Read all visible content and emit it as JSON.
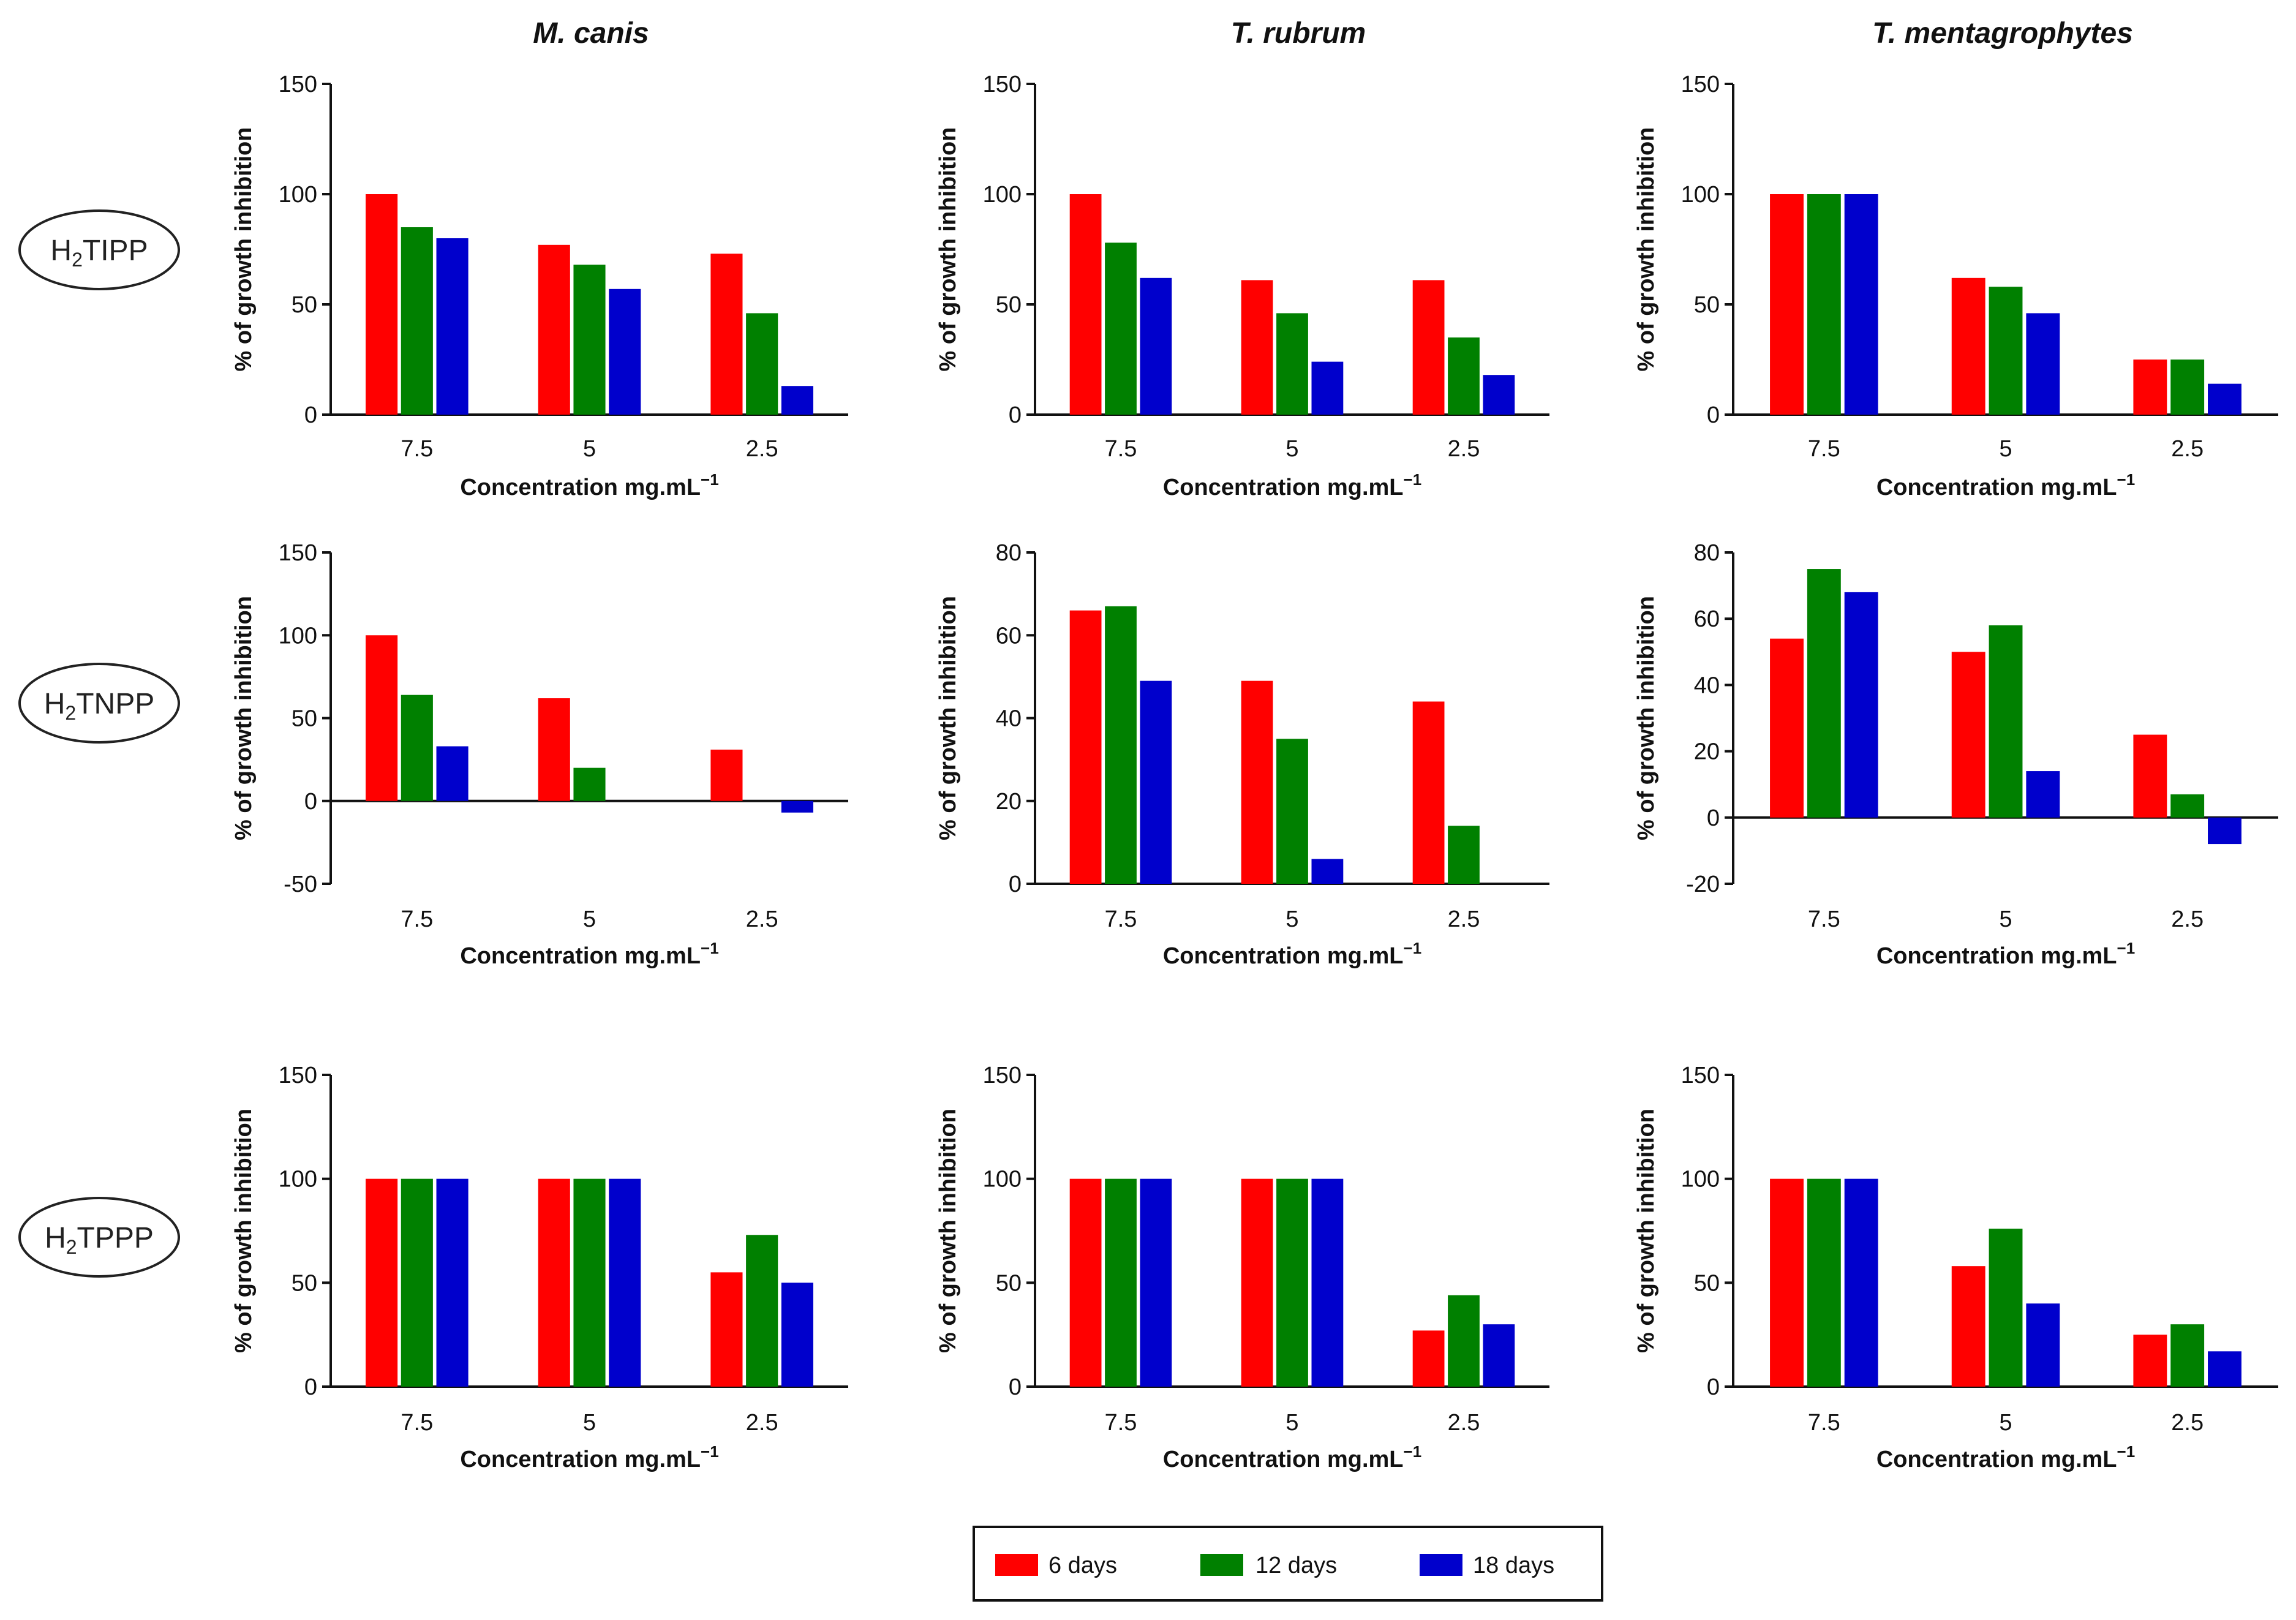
{
  "column_titles": [
    "M. canis",
    "T. rubrum",
    "T. mentagrophytes"
  ],
  "row_labels": [
    {
      "prefix": "H",
      "sub": "2",
      "suffix": "TIPP"
    },
    {
      "prefix": "H",
      "sub": "2",
      "suffix": "TNPP"
    },
    {
      "prefix": "H",
      "sub": "2",
      "suffix": "TPPP"
    }
  ],
  "legend": [
    {
      "label": "6 days",
      "color": "#ff0000"
    },
    {
      "label": "12 days",
      "color": "#008000"
    },
    {
      "label": "18 days",
      "color": "#0000cc"
    }
  ],
  "chart_data": [
    {
      "type": "bar",
      "row": 0,
      "col": 0,
      "title": "M. canis",
      "compound": "H2TIPP",
      "categories": [
        "7.5",
        "5",
        "2.5"
      ],
      "xlabel": "Concentration mg.mL",
      "xlabel_sup": "−1",
      "ylabel": "% of growth inhibition",
      "ylim": [
        0,
        150
      ],
      "yticks": [
        0,
        50,
        100,
        150
      ],
      "series": [
        {
          "name": "6 days",
          "values": [
            100,
            77,
            73
          ]
        },
        {
          "name": "12 days",
          "values": [
            85,
            68,
            46
          ]
        },
        {
          "name": "18 days",
          "values": [
            80,
            57,
            13
          ]
        }
      ]
    },
    {
      "type": "bar",
      "row": 0,
      "col": 1,
      "title": "T. rubrum",
      "compound": "H2TIPP",
      "categories": [
        "7.5",
        "5",
        "2.5"
      ],
      "xlabel": "Concentration mg.mL",
      "xlabel_sup": "−1",
      "ylabel": "% of growth inhibition",
      "ylim": [
        0,
        150
      ],
      "yticks": [
        0,
        50,
        100,
        150
      ],
      "series": [
        {
          "name": "6 days",
          "values": [
            100,
            61,
            61
          ]
        },
        {
          "name": "12 days",
          "values": [
            78,
            46,
            35
          ]
        },
        {
          "name": "18 days",
          "values": [
            62,
            24,
            18
          ]
        }
      ]
    },
    {
      "type": "bar",
      "row": 0,
      "col": 2,
      "title": "T. mentagrophytes",
      "compound": "H2TIPP",
      "categories": [
        "7.5",
        "5",
        "2.5"
      ],
      "xlabel": "Concentration mg.mL",
      "xlabel_sup": "−1",
      "ylabel": "% of growth inhibition",
      "ylim": [
        0,
        150
      ],
      "yticks": [
        0,
        50,
        100,
        150
      ],
      "series": [
        {
          "name": "6 days",
          "values": [
            100,
            62,
            25
          ]
        },
        {
          "name": "12 days",
          "values": [
            100,
            58,
            25
          ]
        },
        {
          "name": "18 days",
          "values": [
            100,
            46,
            14
          ]
        }
      ]
    },
    {
      "type": "bar",
      "row": 1,
      "col": 0,
      "title": "M. canis",
      "compound": "H2TNPP",
      "categories": [
        "7.5",
        "5",
        "2.5"
      ],
      "xlabel": "Concentration mg.mL",
      "xlabel_sup": "−1",
      "ylabel": "% of growth inhibition",
      "ylim": [
        -50,
        150
      ],
      "yticks": [
        -50,
        0,
        50,
        100,
        150
      ],
      "series": [
        {
          "name": "6 days",
          "values": [
            100,
            62,
            31
          ]
        },
        {
          "name": "12 days",
          "values": [
            64,
            20,
            0
          ]
        },
        {
          "name": "18 days",
          "values": [
            33,
            0,
            -7
          ]
        }
      ]
    },
    {
      "type": "bar",
      "row": 1,
      "col": 1,
      "title": "T. rubrum",
      "compound": "H2TNPP",
      "categories": [
        "7.5",
        "5",
        "2.5"
      ],
      "xlabel": "Concentration mg.mL",
      "xlabel_sup": "−1",
      "ylabel": "% of growth inhibition",
      "ylim": [
        0,
        80
      ],
      "yticks": [
        0,
        20,
        40,
        60,
        80
      ],
      "series": [
        {
          "name": "6 days",
          "values": [
            66,
            49,
            44
          ]
        },
        {
          "name": "12 days",
          "values": [
            67,
            35,
            14
          ]
        },
        {
          "name": "18 days",
          "values": [
            49,
            6,
            0
          ]
        }
      ]
    },
    {
      "type": "bar",
      "row": 1,
      "col": 2,
      "title": "T. mentagrophytes",
      "compound": "H2TNPP",
      "categories": [
        "7.5",
        "5",
        "2.5"
      ],
      "xlabel": "Concentration mg.mL",
      "xlabel_sup": "−1",
      "ylabel": "% of growth inhibition",
      "ylim": [
        -20,
        80
      ],
      "yticks": [
        -20,
        0,
        20,
        40,
        60,
        80
      ],
      "series": [
        {
          "name": "6 days",
          "values": [
            54,
            50,
            25
          ]
        },
        {
          "name": "12 days",
          "values": [
            75,
            58,
            7
          ]
        },
        {
          "name": "18 days",
          "values": [
            68,
            14,
            -8
          ]
        }
      ]
    },
    {
      "type": "bar",
      "row": 2,
      "col": 0,
      "title": "M. canis",
      "compound": "H2TPPP",
      "categories": [
        "7.5",
        "5",
        "2.5"
      ],
      "xlabel": "Concentration mg.mL",
      "xlabel_sup": "−1",
      "ylabel": "% of growth inhibition",
      "ylim": [
        0,
        150
      ],
      "yticks": [
        0,
        50,
        100,
        150
      ],
      "series": [
        {
          "name": "6 days",
          "values": [
            100,
            100,
            55
          ]
        },
        {
          "name": "12 days",
          "values": [
            100,
            100,
            73
          ]
        },
        {
          "name": "18 days",
          "values": [
            100,
            100,
            50
          ]
        }
      ]
    },
    {
      "type": "bar",
      "row": 2,
      "col": 1,
      "title": "T. rubrum",
      "compound": "H2TPPP",
      "categories": [
        "7.5",
        "5",
        "2.5"
      ],
      "xlabel": "Concentration mg.mL",
      "xlabel_sup": "−1",
      "ylabel": "% of growth inhibition",
      "ylim": [
        0,
        150
      ],
      "yticks": [
        0,
        50,
        100,
        150
      ],
      "series": [
        {
          "name": "6 days",
          "values": [
            100,
            100,
            27
          ]
        },
        {
          "name": "12 days",
          "values": [
            100,
            100,
            44
          ]
        },
        {
          "name": "18 days",
          "values": [
            100,
            100,
            30
          ]
        }
      ]
    },
    {
      "type": "bar",
      "row": 2,
      "col": 2,
      "title": "T. mentagrophytes",
      "compound": "H2TPPP",
      "categories": [
        "7.5",
        "5",
        "2.5"
      ],
      "xlabel": "Concentration mg.mL",
      "xlabel_sup": "−1",
      "ylabel": "% of growth inhibition",
      "ylim": [
        0,
        150
      ],
      "yticks": [
        0,
        50,
        100,
        150
      ],
      "series": [
        {
          "name": "6 days",
          "values": [
            100,
            58,
            25
          ]
        },
        {
          "name": "12 days",
          "values": [
            100,
            76,
            30
          ]
        },
        {
          "name": "18 days",
          "values": [
            100,
            40,
            17
          ]
        }
      ]
    }
  ]
}
